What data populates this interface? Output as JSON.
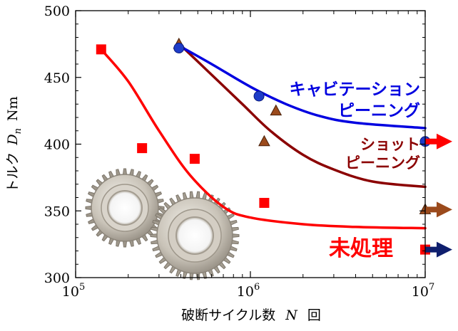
{
  "chart_data": {
    "type": "scatter",
    "title": "",
    "xlabel": {
      "prefix": "破断サイクル数",
      "var": "N",
      "suffix": "回"
    },
    "ylabel": {
      "prefix": "トルク",
      "var": "D",
      "sub": "n",
      "unit": "Nm"
    },
    "x_scale": "log",
    "xlim": [
      100000,
      10000000
    ],
    "ylim": [
      300,
      500
    ],
    "x_ticks": [
      {
        "value": 100000,
        "base": "10",
        "exp": "5"
      },
      {
        "value": 1000000,
        "base": "10",
        "exp": "6"
      },
      {
        "value": 10000000,
        "base": "10",
        "exp": "7"
      }
    ],
    "y_ticks": [
      {
        "value": 300,
        "label": "300"
      },
      {
        "value": 350,
        "label": "350"
      },
      {
        "value": 400,
        "label": "400"
      },
      {
        "value": 450,
        "label": "450"
      },
      {
        "value": 500,
        "label": "500"
      }
    ],
    "grid": false,
    "series": [
      {
        "name": "未処理",
        "label_lines": [
          "未処理"
        ],
        "color": "#ff0000",
        "marker": "square",
        "points": [
          [
            140000,
            471
          ],
          [
            240000,
            397
          ],
          [
            480000,
            389
          ],
          [
            1200000,
            356
          ]
        ],
        "runout": [
          [
            10000000,
            321
          ]
        ],
        "curve": [
          [
            140000,
            471
          ],
          [
            200000,
            447
          ],
          [
            300000,
            410
          ],
          [
            450000,
            377
          ],
          [
            700000,
            353
          ],
          [
            1000000,
            345
          ],
          [
            2000000,
            340
          ],
          [
            4000000,
            338
          ],
          [
            10000000,
            337
          ]
        ]
      },
      {
        "name": "ショットピーニング",
        "label_lines": [
          "ショット",
          "ピーニング"
        ],
        "color": "#8b0000",
        "marker": "triangle",
        "points": [
          [
            390000,
            475
          ],
          [
            1200000,
            402
          ],
          [
            1400000,
            425
          ]
        ],
        "runout": [
          [
            10000000,
            351
          ]
        ],
        "curve": [
          [
            400000,
            474
          ],
          [
            600000,
            452
          ],
          [
            900000,
            430
          ],
          [
            1300000,
            410
          ],
          [
            2000000,
            392
          ],
          [
            3000000,
            381
          ],
          [
            5000000,
            372
          ],
          [
            10000000,
            368
          ]
        ]
      },
      {
        "name": "キャビテーションピーニング",
        "label_lines": [
          "キャビテーション",
          "ピーニング"
        ],
        "color": "#0000e0",
        "marker": "circle",
        "points": [
          [
            390000,
            472
          ],
          [
            1120000,
            436
          ]
        ],
        "runout": [
          [
            10000000,
            402
          ]
        ],
        "curve": [
          [
            400000,
            473
          ],
          [
            600000,
            460
          ],
          [
            1000000,
            443
          ],
          [
            1600000,
            430
          ],
          [
            2500000,
            421
          ],
          [
            4000000,
            416
          ],
          [
            10000000,
            412
          ]
        ]
      }
    ],
    "runout_arrow_colors": [
      "#0f1f6e",
      "#9b4a1c",
      "#ff0000"
    ]
  }
}
